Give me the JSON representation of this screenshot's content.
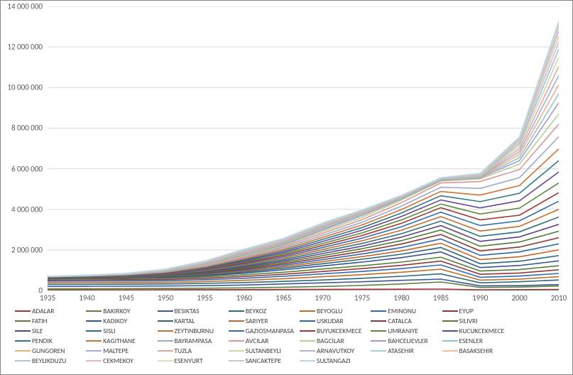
{
  "chart": {
    "type": "line",
    "background_color": "#ffffff",
    "grid_color": "#d9d9d9",
    "border_color": "#868686",
    "axis_font_size": 11,
    "legend_font_size": 9.5,
    "x": [
      1935,
      1940,
      1945,
      1950,
      1955,
      1960,
      1965,
      1970,
      1975,
      1980,
      1985,
      1990,
      2000,
      2010
    ],
    "xlim": [
      1935,
      2010
    ],
    "ylim": [
      0,
      14000000
    ],
    "ytick_step": 2000000,
    "y_tick_labels": [
      "0",
      "2 000 000",
      "4 000 000",
      "6 000 000",
      "8 000 000",
      "10 000 000",
      "12 000 000",
      "14 000 000"
    ],
    "series": [
      {
        "name": "ADALAR",
        "color": "#9e3b3a",
        "values": [
          20,
          25,
          30,
          35,
          38,
          40,
          50,
          55,
          60,
          65,
          70,
          35,
          40,
          50
        ]
      },
      {
        "name": "BAKIRKOY",
        "color": "#5e813f",
        "values": [
          80,
          85,
          90,
          100,
          110,
          130,
          160,
          200,
          250,
          320,
          420,
          150,
          170,
          220
        ]
      },
      {
        "name": "BESIKTAS",
        "color": "#3a5896",
        "values": [
          200,
          205,
          210,
          220,
          240,
          270,
          320,
          380,
          430,
          500,
          560,
          230,
          240,
          290
        ]
      },
      {
        "name": "BEYKOZ",
        "color": "#2d6a7b",
        "values": [
          300,
          305,
          310,
          320,
          350,
          390,
          450,
          520,
          600,
          700,
          820,
          380,
          430,
          520
        ]
      },
      {
        "name": "BEYOGLU",
        "color": "#c06b26",
        "values": [
          380,
          385,
          390,
          400,
          440,
          500,
          580,
          680,
          780,
          900,
          1050,
          510,
          560,
          680
        ]
      },
      {
        "name": "EMINONU",
        "color": "#326aae",
        "values": [
          460,
          465,
          470,
          480,
          530,
          600,
          700,
          820,
          940,
          1080,
          1260,
          650,
          710,
          840
        ]
      },
      {
        "name": "EYUP",
        "color": "#953736",
        "values": [
          520,
          525,
          530,
          545,
          600,
          690,
          800,
          940,
          1080,
          1240,
          1450,
          800,
          860,
          1020
        ]
      },
      {
        "name": "FATIH",
        "color": "#557e38",
        "values": [
          580,
          585,
          590,
          610,
          670,
          770,
          900,
          1060,
          1220,
          1400,
          1640,
          960,
          1030,
          1220
        ]
      },
      {
        "name": "KADIKOY",
        "color": "#355490",
        "values": [
          600,
          610,
          620,
          650,
          730,
          850,
          1020,
          1210,
          1400,
          1620,
          1900,
          1130,
          1230,
          1460
        ]
      },
      {
        "name": "KARTAL",
        "color": "#2b6575",
        "values": [
          620,
          630,
          645,
          680,
          770,
          910,
          1100,
          1320,
          1540,
          1790,
          2120,
          1320,
          1440,
          1720
        ]
      },
      {
        "name": "SARIYER",
        "color": "#c0682a",
        "values": [
          630,
          645,
          660,
          700,
          800,
          960,
          1170,
          1420,
          1670,
          1950,
          2330,
          1520,
          1660,
          2000
        ]
      },
      {
        "name": "USKUDAR",
        "color": "#3068aa",
        "values": [
          640,
          655,
          675,
          720,
          830,
          1010,
          1240,
          1520,
          1800,
          2120,
          2540,
          1730,
          1900,
          2300
        ]
      },
      {
        "name": "CATALCA",
        "color": "#8f3635",
        "values": [
          645,
          662,
          685,
          740,
          860,
          1060,
          1310,
          1620,
          1930,
          2290,
          2760,
          1950,
          2140,
          2600
        ]
      },
      {
        "name": "SILIVRI",
        "color": "#537b37",
        "values": [
          650,
          668,
          695,
          760,
          890,
          1110,
          1380,
          1720,
          2060,
          2460,
          2980,
          2180,
          2390,
          2920
        ]
      },
      {
        "name": "SILE",
        "color": "#5a4285",
        "values": [
          652,
          672,
          702,
          775,
          920,
          1160,
          1450,
          1820,
          2190,
          2630,
          3200,
          2420,
          2640,
          3260
        ]
      },
      {
        "name": "SISLI",
        "color": "#2e6e80",
        "values": [
          655,
          677,
          710,
          790,
          950,
          1210,
          1520,
          1920,
          2320,
          2800,
          3420,
          2670,
          2890,
          3620
        ]
      },
      {
        "name": "ZEYTINBURNU",
        "color": "#c76c2f",
        "values": [
          660,
          683,
          720,
          805,
          980,
          1260,
          1590,
          2020,
          2450,
          2970,
          3640,
          2930,
          3160,
          4000
        ]
      },
      {
        "name": "GAZIOSMANPASA",
        "color": "#346cae",
        "values": [
          662,
          688,
          730,
          820,
          1010,
          1310,
          1660,
          2120,
          2580,
          3140,
          3860,
          3200,
          3430,
          4400
        ]
      },
      {
        "name": "BUYUKCEKMECE",
        "color": "#a03737",
        "values": [
          665,
          693,
          740,
          835,
          1040,
          1360,
          1730,
          2220,
          2710,
          3310,
          4080,
          3480,
          3710,
          4820
        ]
      },
      {
        "name": "UMRANIYE",
        "color": "#5e883d",
        "values": [
          668,
          698,
          748,
          850,
          1070,
          1410,
          1800,
          2320,
          2840,
          3480,
          4260,
          3770,
          4060,
          5300
        ]
      },
      {
        "name": "KUCUKCEKMECE",
        "color": "#654894",
        "values": [
          670,
          703,
          755,
          865,
          1100,
          1460,
          1870,
          2420,
          2970,
          3650,
          4460,
          4070,
          4420,
          5840
        ]
      },
      {
        "name": "PENDIK",
        "color": "#33788c",
        "values": [
          672,
          708,
          762,
          880,
          1130,
          1510,
          1940,
          2520,
          3100,
          3820,
          4670,
          4380,
          4790,
          6400
        ]
      },
      {
        "name": "KAGITHANE",
        "color": "#d17234",
        "values": [
          675,
          712,
          770,
          895,
          1160,
          1560,
          2010,
          2620,
          3230,
          3990,
          4880,
          4700,
          5170,
          6980
        ]
      },
      {
        "name": "BAYRAMPASA",
        "color": "#99aacc",
        "values": [
          677,
          716,
          778,
          910,
          1190,
          1610,
          2080,
          2720,
          3360,
          4160,
          5090,
          5030,
          5560,
          7580
        ]
      },
      {
        "name": "AVCILAR",
        "color": "#d99795",
        "values": [
          680,
          720,
          785,
          925,
          1220,
          1660,
          2150,
          2820,
          3490,
          4330,
          5300,
          5370,
          5960,
          8200
        ]
      },
      {
        "name": "BAGCILAR",
        "color": "#b6cf94",
        "values": [
          682,
          725,
          792,
          940,
          1250,
          1710,
          2210,
          2910,
          3610,
          4460,
          5390,
          5500,
          6230,
          8700
        ]
      },
      {
        "name": "BAHCELIEVLER",
        "color": "#a99bbd",
        "values": [
          684,
          728,
          798,
          955,
          1280,
          1760,
          2260,
          2990,
          3700,
          4520,
          5430,
          5550,
          6400,
          9250
        ]
      },
      {
        "name": "ESENLER",
        "color": "#90c3d4",
        "values": [
          686,
          731,
          803,
          968,
          1300,
          1800,
          2300,
          3050,
          3760,
          4560,
          5460,
          5580,
          6550,
          9700
        ]
      },
      {
        "name": "GUNGOREN",
        "color": "#f2b07e",
        "values": [
          688,
          735,
          808,
          980,
          1320,
          1830,
          2340,
          3100,
          3800,
          4590,
          5480,
          5600,
          6700,
          10150
        ]
      },
      {
        "name": "MALTEPE",
        "color": "#9fb3d9",
        "values": [
          689,
          738,
          813,
          990,
          1340,
          1860,
          2380,
          3140,
          3840,
          4610,
          5490,
          5620,
          6840,
          10600
        ]
      },
      {
        "name": "TUZLA",
        "color": "#e3a6a4",
        "values": [
          690,
          740,
          818,
          1000,
          1360,
          1890,
          2420,
          3180,
          3870,
          4630,
          5510,
          5640,
          6980,
          11050
        ]
      },
      {
        "name": "SULTANBEYLI",
        "color": "#c6dda5",
        "values": [
          691,
          742,
          822,
          1010,
          1380,
          1920,
          2450,
          3210,
          3890,
          4640,
          5520,
          5660,
          7110,
          11500
        ]
      },
      {
        "name": "ARNAVUTKOY",
        "color": "#bbb0d0",
        "values": [
          692,
          744,
          826,
          1018,
          1395,
          1945,
          2475,
          3235,
          3910,
          4650,
          5530,
          5680,
          7230,
          11900
        ]
      },
      {
        "name": "ATASEHIR",
        "color": "#a3d1e0",
        "values": [
          693,
          746,
          830,
          1025,
          1410,
          1965,
          2500,
          3260,
          3930,
          4660,
          5540,
          5700,
          7330,
          12250
        ]
      },
      {
        "name": "BASAKSEHIR",
        "color": "#f7c194",
        "values": [
          694,
          748,
          834,
          1032,
          1420,
          1985,
          2520,
          3280,
          3940,
          4670,
          5545,
          5720,
          7410,
          12550
        ]
      },
      {
        "name": "BEYLIKDUZU",
        "color": "#b0c1e4",
        "values": [
          695,
          750,
          837,
          1038,
          1430,
          2000,
          2535,
          3295,
          3950,
          4675,
          5548,
          5735,
          7470,
          12800
        ]
      },
      {
        "name": "CEKMEKOY",
        "color": "#efb7b5",
        "values": [
          696,
          751,
          840,
          1043,
          1438,
          2012,
          2548,
          3308,
          3958,
          4680,
          5550,
          5748,
          7510,
          13000
        ]
      },
      {
        "name": "ESENYURT",
        "color": "#d3e6b7",
        "values": [
          696,
          752,
          842,
          1047,
          1444,
          2022,
          2558,
          3318,
          3964,
          4683,
          5552,
          5758,
          7537,
          13130
        ]
      },
      {
        "name": "SANCAKTEPE",
        "color": "#cbc2dd",
        "values": [
          697,
          753,
          843,
          1050,
          1448,
          2028,
          2564,
          3324,
          3968,
          4684,
          5553,
          5764,
          7555,
          13220
        ]
      },
      {
        "name": "SULTANGAZI",
        "color": "#b4dbe8",
        "values": [
          697,
          754,
          844,
          1052,
          1450,
          2032,
          2568,
          3328,
          3970,
          4685,
          5554,
          5768,
          7565,
          13270
        ]
      }
    ],
    "value_scale_note": "series values are thousands; multiply by 1000 for absolute population (stacked cumulative)"
  }
}
